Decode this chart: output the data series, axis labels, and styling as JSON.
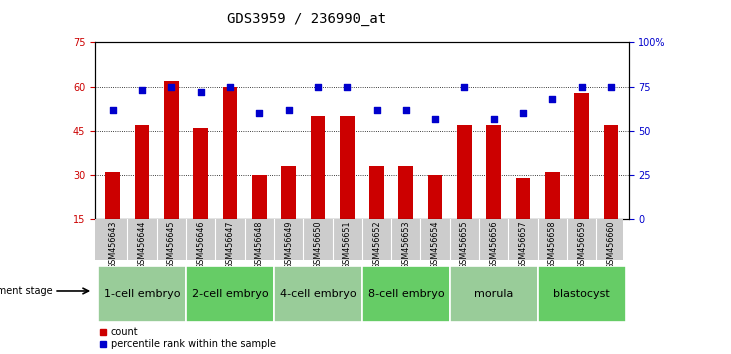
{
  "title": "GDS3959 / 236990_at",
  "samples": [
    "GSM456643",
    "GSM456644",
    "GSM456645",
    "GSM456646",
    "GSM456647",
    "GSM456648",
    "GSM456649",
    "GSM456650",
    "GSM456651",
    "GSM456652",
    "GSM456653",
    "GSM456654",
    "GSM456655",
    "GSM456656",
    "GSM456657",
    "GSM456658",
    "GSM456659",
    "GSM456660"
  ],
  "bar_values": [
    31,
    47,
    62,
    46,
    60,
    30,
    33,
    50,
    50,
    33,
    33,
    30,
    47,
    47,
    29,
    31,
    58,
    47
  ],
  "dot_values": [
    62,
    73,
    75,
    72,
    75,
    60,
    62,
    75,
    75,
    62,
    62,
    57,
    75,
    57,
    60,
    68,
    75,
    75
  ],
  "ylim_left": [
    15,
    75
  ],
  "ylim_right": [
    0,
    100
  ],
  "yticks_left": [
    15,
    30,
    45,
    60,
    75
  ],
  "yticks_right": [
    0,
    25,
    50,
    75,
    100
  ],
  "bar_color": "#cc0000",
  "dot_color": "#0000cc",
  "stages": [
    {
      "label": "1-cell embryo",
      "start": 0,
      "end": 3,
      "color": "#99cc99"
    },
    {
      "label": "2-cell embryo",
      "start": 3,
      "end": 6,
      "color": "#66cc66"
    },
    {
      "label": "4-cell embryo",
      "start": 6,
      "end": 9,
      "color": "#99cc99"
    },
    {
      "label": "8-cell embryo",
      "start": 9,
      "end": 12,
      "color": "#66cc66"
    },
    {
      "label": "morula",
      "start": 12,
      "end": 15,
      "color": "#99cc99"
    },
    {
      "label": "blastocyst",
      "start": 15,
      "end": 18,
      "color": "#66cc66"
    }
  ],
  "xlabel_stage": "development stage",
  "legend_bar": "count",
  "legend_dot": "percentile rank within the sample",
  "title_fontsize": 10,
  "tick_fontsize": 7,
  "stage_fontsize": 8,
  "bar_width": 0.5
}
